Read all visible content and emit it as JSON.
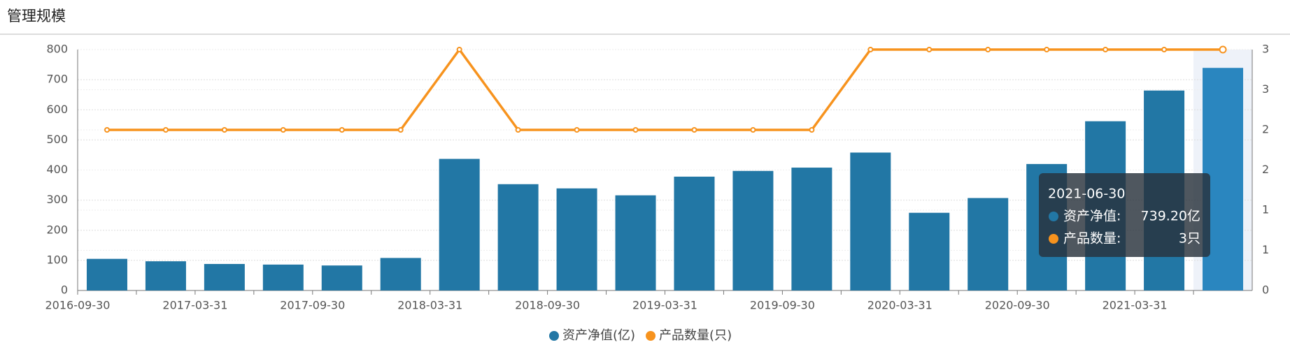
{
  "page_title": "管理规模",
  "chart_data": {
    "type": "bar-line",
    "categories": [
      "2016-09-30",
      null,
      "2017-03-31",
      null,
      "2017-09-30",
      null,
      "2018-03-31",
      null,
      "2018-09-30",
      null,
      "2019-03-31",
      null,
      "2019-09-30",
      null,
      "2020-03-31",
      null,
      "2020-09-30",
      null,
      "2021-03-31",
      "2021-06-30"
    ],
    "x_label_interval": 2,
    "series": [
      {
        "name": "资产净值(亿)",
        "type": "bar",
        "color": "#2277a5",
        "values": [
          105,
          97,
          88,
          86,
          83,
          108,
          437,
          353,
          339,
          316,
          378,
          397,
          408,
          458,
          258,
          307,
          420,
          562,
          664,
          739.2
        ]
      },
      {
        "name": "产品数量(只)",
        "type": "line",
        "axis": "y2",
        "color": "#f7931e",
        "values": [
          2,
          2,
          2,
          2,
          2,
          2,
          3,
          2,
          2,
          2,
          2,
          2,
          2,
          3,
          3,
          3,
          3,
          3,
          3,
          3
        ]
      }
    ],
    "ylim": [
      0,
      800
    ],
    "yticks": [
      0,
      100,
      200,
      300,
      400,
      500,
      600,
      700,
      800
    ],
    "y2lim": [
      0,
      3
    ],
    "y2ticks": [
      0,
      {
        "value": 0.5,
        "label": "1"
      },
      1,
      {
        "value": 1.5,
        "label": "2"
      },
      2,
      {
        "value": 2.5,
        "label": "3"
      },
      3
    ],
    "grid": true,
    "tooltip": {
      "index": 19,
      "lines": [
        {
          "label": "资产净值:",
          "value_label": "739.20亿"
        },
        {
          "label": "产品数量:",
          "value_label": "3只"
        }
      ]
    }
  }
}
